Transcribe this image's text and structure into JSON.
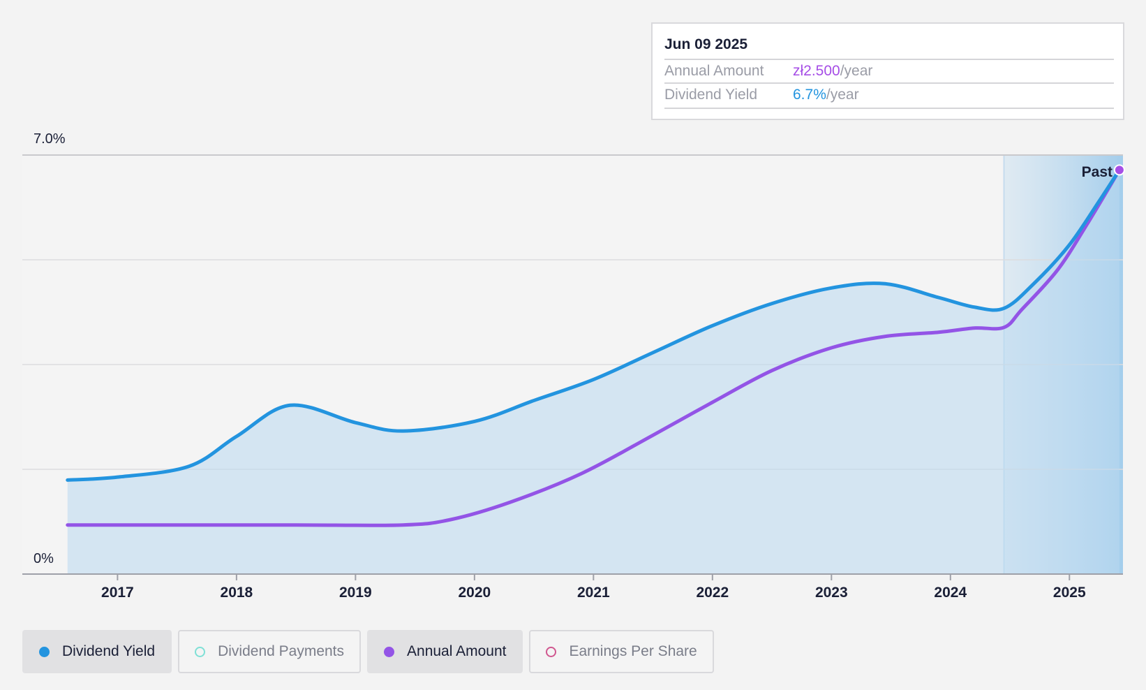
{
  "chart_data": {
    "type": "area",
    "y_axis": {
      "min_label": "0%",
      "max_label": "7.0%",
      "ylim": [
        0,
        7.0
      ]
    },
    "x_axis": {
      "ticks": [
        "2017",
        "2018",
        "2019",
        "2020",
        "2021",
        "2022",
        "2023",
        "2024",
        "2025"
      ],
      "xlim": [
        2016.2,
        2025.45
      ]
    },
    "past_label": "Past",
    "grid": true,
    "legend_position": "bottom",
    "series": [
      {
        "name": "Dividend Yield",
        "color": "#2394df",
        "points": [
          [
            2016.58,
            1.57
          ],
          [
            2017.0,
            1.62
          ],
          [
            2017.6,
            1.8
          ],
          [
            2018.0,
            2.3
          ],
          [
            2018.45,
            2.82
          ],
          [
            2019.0,
            2.53
          ],
          [
            2019.4,
            2.39
          ],
          [
            2020.0,
            2.55
          ],
          [
            2020.5,
            2.9
          ],
          [
            2021.0,
            3.25
          ],
          [
            2021.5,
            3.7
          ],
          [
            2022.0,
            4.15
          ],
          [
            2022.5,
            4.52
          ],
          [
            2023.0,
            4.78
          ],
          [
            2023.45,
            4.85
          ],
          [
            2023.9,
            4.62
          ],
          [
            2024.2,
            4.46
          ],
          [
            2024.45,
            4.44
          ],
          [
            2024.7,
            4.85
          ],
          [
            2025.0,
            5.5
          ],
          [
            2025.25,
            6.23
          ],
          [
            2025.42,
            6.75
          ]
        ]
      },
      {
        "name": "Annual Amount",
        "color": "#9354e6",
        "points": [
          [
            2016.58,
            0.82
          ],
          [
            2017.5,
            0.82
          ],
          [
            2018.5,
            0.82
          ],
          [
            2019.4,
            0.82
          ],
          [
            2019.8,
            0.91
          ],
          [
            2020.3,
            1.2
          ],
          [
            2020.9,
            1.68
          ],
          [
            2021.5,
            2.32
          ],
          [
            2022.0,
            2.87
          ],
          [
            2022.5,
            3.4
          ],
          [
            2023.0,
            3.78
          ],
          [
            2023.45,
            3.97
          ],
          [
            2023.9,
            4.04
          ],
          [
            2024.2,
            4.11
          ],
          [
            2024.45,
            4.12
          ],
          [
            2024.6,
            4.42
          ],
          [
            2024.9,
            5.08
          ],
          [
            2025.15,
            5.85
          ],
          [
            2025.42,
            6.75
          ]
        ]
      }
    ]
  },
  "tooltip": {
    "date": "Jun 09 2025",
    "rows": [
      {
        "label": "Annual Amount",
        "value": "zł2.500",
        "suffix": "/year",
        "color": "#a64ee6"
      },
      {
        "label": "Dividend Yield",
        "value": "6.7%",
        "suffix": "/year",
        "color": "#2394df"
      }
    ]
  },
  "legend": [
    {
      "label": "Dividend Yield",
      "active": true,
      "dot_color": "#2394df",
      "hollow": false
    },
    {
      "label": "Dividend Payments",
      "active": false,
      "dot_color": "#7fe0d6",
      "hollow": true
    },
    {
      "label": "Annual Amount",
      "active": true,
      "dot_color": "#9354e6",
      "hollow": false
    },
    {
      "label": "Earnings Per Share",
      "active": false,
      "dot_color": "#d0578f",
      "hollow": true
    }
  ]
}
